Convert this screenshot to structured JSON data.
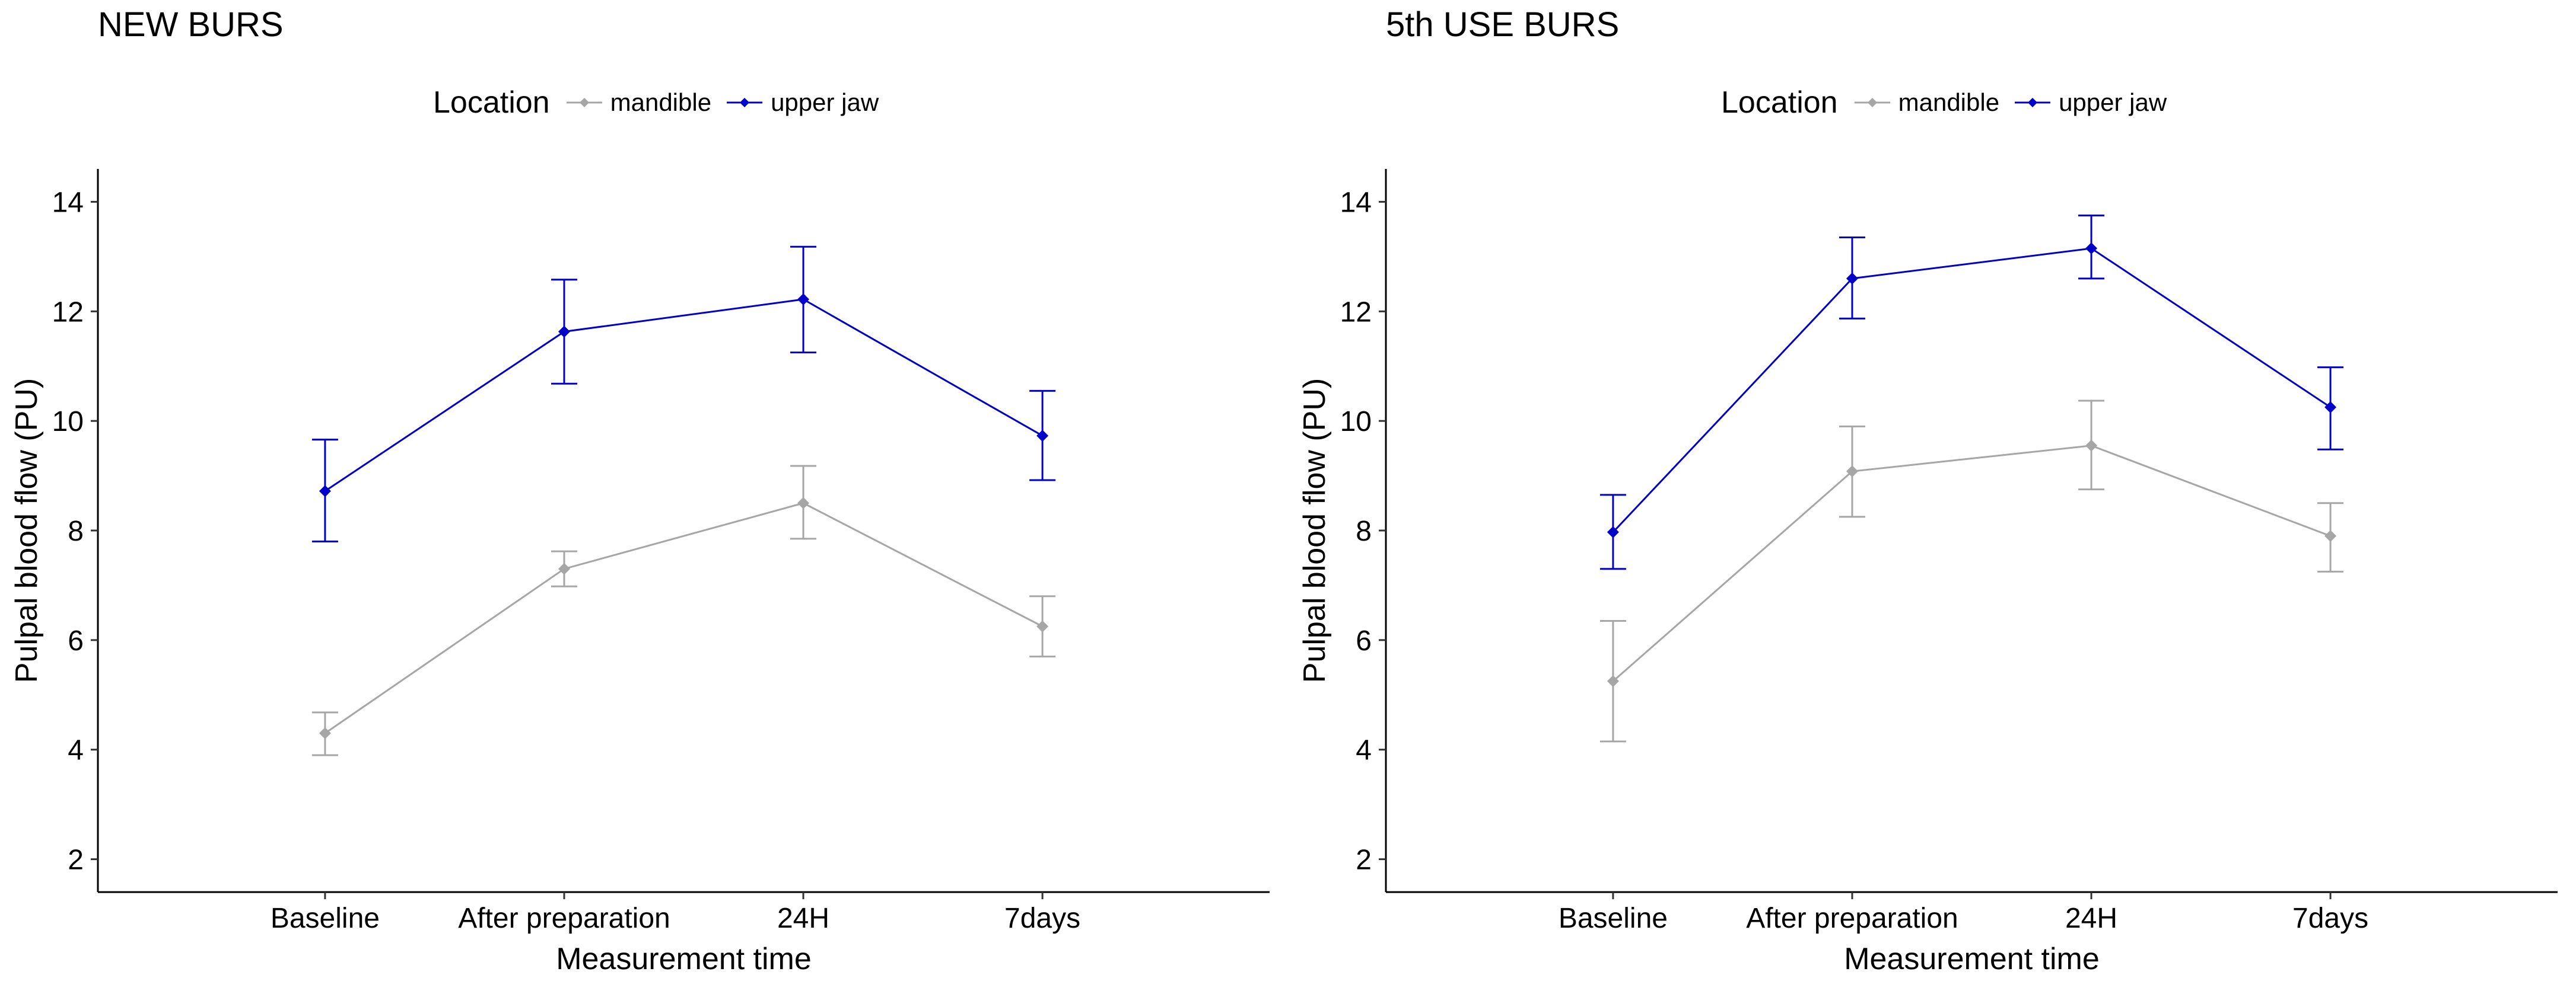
{
  "chart_data": [
    {
      "type": "line",
      "title": "NEW BURS",
      "xlabel": "Measurement time",
      "ylabel": "Pulpal blood flow (PU)",
      "categories": [
        "Baseline",
        "After preparation",
        "24H",
        "7days"
      ],
      "ylim": [
        1.4,
        14.6
      ],
      "yticks": [
        2,
        4,
        6,
        8,
        10,
        12,
        14
      ],
      "grid": false,
      "legend": {
        "title": "Location",
        "placement": "top"
      },
      "series": [
        {
          "name": "mandible",
          "color": "#a6a6a6",
          "values": [
            4.3,
            7.3,
            8.5,
            6.25
          ],
          "error_low": [
            3.9,
            6.98,
            7.85,
            5.7
          ],
          "error_high": [
            4.68,
            7.62,
            9.18,
            6.8
          ]
        },
        {
          "name": "upper jaw",
          "color": "#0000c8",
          "values": [
            8.72,
            11.63,
            12.22,
            9.73
          ],
          "error_low": [
            7.8,
            10.68,
            11.25,
            8.92
          ],
          "error_high": [
            9.66,
            12.58,
            13.18,
            10.55
          ]
        }
      ]
    },
    {
      "type": "line",
      "title": "5th USE BURS",
      "xlabel": "Measurement time",
      "ylabel": "Pulpal blood flow (PU)",
      "categories": [
        "Baseline",
        "After preparation",
        "24H",
        "7days"
      ],
      "ylim": [
        1.4,
        14.6
      ],
      "yticks": [
        2,
        4,
        6,
        8,
        10,
        12,
        14
      ],
      "grid": false,
      "legend": {
        "title": "Location",
        "placement": "top"
      },
      "series": [
        {
          "name": "mandible",
          "color": "#a6a6a6",
          "values": [
            5.25,
            9.08,
            9.55,
            7.9
          ],
          "error_low": [
            4.15,
            8.25,
            8.75,
            7.25
          ],
          "error_high": [
            6.35,
            9.9,
            10.37,
            8.5
          ]
        },
        {
          "name": "upper jaw",
          "color": "#0000c8",
          "values": [
            7.97,
            12.6,
            13.15,
            10.25
          ],
          "error_low": [
            7.3,
            11.87,
            12.6,
            9.48
          ],
          "error_high": [
            8.65,
            13.35,
            13.75,
            10.98
          ]
        }
      ]
    }
  ]
}
